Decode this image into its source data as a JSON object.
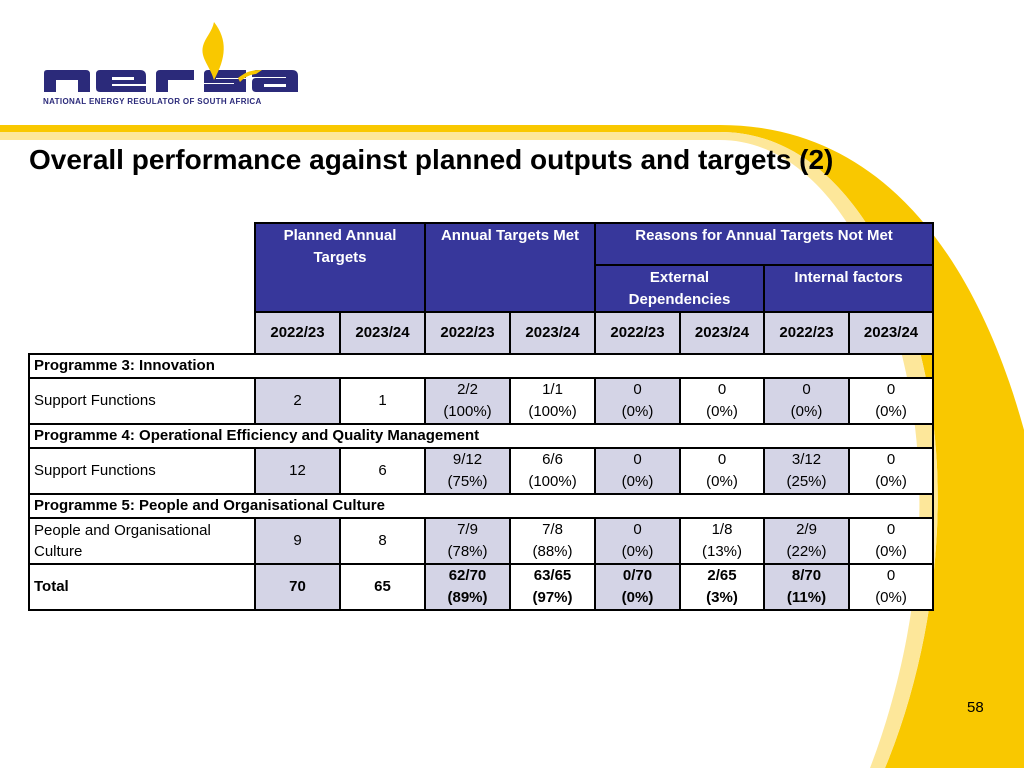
{
  "logo": {
    "wordmark": "nersa",
    "tagline": "NATIONAL ENERGY REGULATOR OF SOUTH AFRICA"
  },
  "title": "Overall performance against planned outputs and targets (2)",
  "page_number": "58",
  "colors": {
    "header_bg": "#37379b",
    "shade_bg": "#d4d4e6",
    "accent_yellow": "#f9c800",
    "brand_navy": "#2b2a7a"
  },
  "table": {
    "headers": {
      "planned": "Planned Annual Targets",
      "met": "Annual Targets Met",
      "reasons": "Reasons for Annual Targets Not Met",
      "external": "External Dependencies",
      "internal": "Internal factors"
    },
    "years": [
      "2022/23",
      "2023/24",
      "2022/23",
      "2023/24",
      "2022/23",
      "2023/24",
      "2022/23",
      "2023/24"
    ],
    "programmes": [
      {
        "heading": "Programme 3:   Innovation",
        "row": {
          "label": "Support Functions",
          "planned": [
            "2",
            "1"
          ],
          "met": [
            [
              "2/2",
              "(100%)"
            ],
            [
              "1/1",
              "(100%)"
            ]
          ],
          "external": [
            [
              "0",
              "(0%)"
            ],
            [
              "0",
              "(0%)"
            ]
          ],
          "internal": [
            [
              "0",
              "(0%)"
            ],
            [
              "0",
              "(0%)"
            ]
          ]
        }
      },
      {
        "heading": "Programme 4:   Operational Efficiency and Quality Management",
        "row": {
          "label": "Support Functions",
          "planned": [
            "12",
            "6"
          ],
          "met": [
            [
              "9/12",
              "(75%)"
            ],
            [
              "6/6",
              "(100%)"
            ]
          ],
          "external": [
            [
              "0",
              "(0%)"
            ],
            [
              "0",
              "(0%)"
            ]
          ],
          "internal": [
            [
              "3/12",
              "(25%)"
            ],
            [
              "0",
              "(0%)"
            ]
          ]
        }
      },
      {
        "heading": "Programme 5:   People and Organisational Culture",
        "row": {
          "label": "People and Organisational Culture",
          "planned": [
            "9",
            "8"
          ],
          "met": [
            [
              "7/9",
              "(78%)"
            ],
            [
              "7/8",
              "(88%)"
            ]
          ],
          "external": [
            [
              "0",
              "(0%)"
            ],
            [
              "1/8",
              "(13%)"
            ]
          ],
          "internal": [
            [
              "2/9",
              "(22%)"
            ],
            [
              "0",
              "(0%)"
            ]
          ]
        }
      }
    ],
    "total": {
      "label": "Total",
      "planned": [
        "70",
        "65"
      ],
      "met": [
        [
          "62/70",
          "(89%)"
        ],
        [
          "63/65",
          "(97%)"
        ]
      ],
      "external": [
        [
          "0/70",
          "(0%)"
        ],
        [
          "2/65",
          "(3%)"
        ]
      ],
      "internal": [
        [
          "8/70",
          "(11%)"
        ],
        [
          "0",
          "(0%)"
        ]
      ]
    }
  }
}
